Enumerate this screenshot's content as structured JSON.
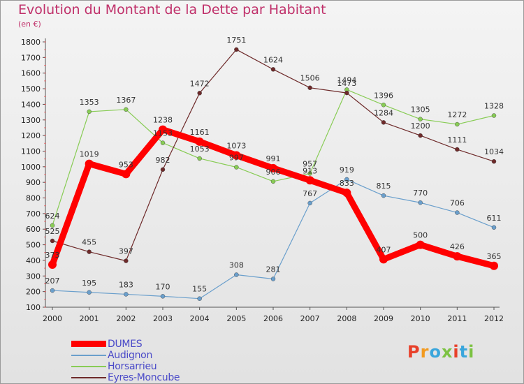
{
  "title": "Evolution du Montant de la Dette par Habitant",
  "unit_label": "(en €)",
  "logo_text": "Proxiti",
  "logo_colors": [
    "#e8402a",
    "#f29a1f",
    "#3aa6dc",
    "#7cc242",
    "#e8402a",
    "#3aa6dc",
    "#7cc242"
  ],
  "chart_data": {
    "type": "line",
    "x": [
      2000,
      2001,
      2002,
      2003,
      2004,
      2005,
      2006,
      2007,
      2008,
      2009,
      2010,
      2011,
      2012
    ],
    "ylim": [
      100,
      1800
    ],
    "yticks": [
      100,
      200,
      300,
      400,
      500,
      600,
      700,
      800,
      900,
      1000,
      1100,
      1200,
      1300,
      1400,
      1500,
      1600,
      1700,
      1800
    ],
    "grid": false,
    "legend_position": "bottom-left",
    "series": [
      {
        "name": "DUMES",
        "color": "#ff0000",
        "values": [
          373,
          1019,
          953,
          1238,
          1161,
          1073,
          991,
          913,
          833,
          407,
          500,
          426,
          365
        ]
      },
      {
        "name": "Audignon",
        "color": "#6a9fcc",
        "values": [
          207,
          195,
          183,
          170,
          155,
          308,
          281,
          767,
          919,
          815,
          770,
          706,
          611
        ]
      },
      {
        "name": "Horsarrieu",
        "color": "#88cc55",
        "values": [
          624,
          1353,
          1367,
          1153,
          1053,
          997,
          906,
          957,
          1494,
          1396,
          1305,
          1272,
          1328
        ]
      },
      {
        "name": "Eyres-Moncube",
        "color": "#6e2a2a",
        "values": [
          525,
          455,
          397,
          982,
          1472,
          1751,
          1624,
          1506,
          1473,
          1284,
          1200,
          1111,
          1034
        ]
      }
    ]
  }
}
